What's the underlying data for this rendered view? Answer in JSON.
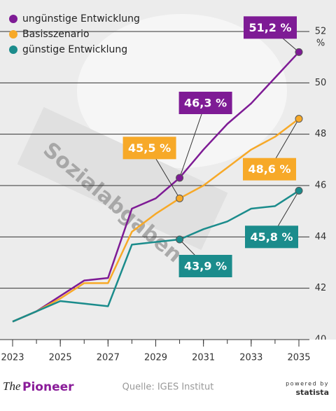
{
  "chart_data": {
    "type": "line",
    "x": [
      2023,
      2024,
      2025,
      2026,
      2027,
      2028,
      2029,
      2030,
      2031,
      2032,
      2033,
      2034,
      2035
    ],
    "xlim": [
      2023,
      2035
    ],
    "xticks": [
      2023,
      2025,
      2027,
      2029,
      2031,
      2033,
      2035
    ],
    "ylim": [
      40,
      52
    ],
    "yticks": [
      40,
      42,
      44,
      46,
      48,
      50,
      52
    ],
    "y_label": "%",
    "grid": true,
    "legend": "top-left",
    "series": [
      {
        "name": "ungünstige Entwicklung",
        "color": "#7e1b95",
        "values": [
          40.7,
          41.1,
          41.7,
          42.3,
          42.4,
          45.1,
          45.5,
          46.3,
          47.4,
          48.4,
          49.2,
          50.2,
          51.2
        ],
        "value_labels": [
          null,
          null,
          null,
          null,
          null,
          null,
          null,
          "46,3 %",
          null,
          null,
          null,
          null,
          "51,2 %"
        ]
      },
      {
        "name": "Basisszenario",
        "color": "#f7a928",
        "values": [
          40.7,
          41.1,
          41.6,
          42.2,
          42.2,
          44.2,
          44.9,
          45.5,
          46.0,
          46.7,
          47.4,
          47.9,
          48.6
        ],
        "value_labels": [
          null,
          null,
          null,
          null,
          null,
          null,
          null,
          "45,5 %",
          null,
          null,
          null,
          null,
          "48,6 %"
        ]
      },
      {
        "name": "günstige Entwicklung",
        "color": "#1b8c8c",
        "values": [
          40.7,
          41.1,
          41.5,
          41.4,
          41.3,
          43.7,
          43.8,
          43.9,
          44.3,
          44.6,
          45.1,
          45.2,
          45.8
        ],
        "value_labels": [
          null,
          null,
          null,
          null,
          null,
          null,
          null,
          "43,9 %",
          null,
          null,
          null,
          null,
          "45,8 %"
        ]
      }
    ]
  },
  "background_text": "Sozialabgaben",
  "footer": {
    "brand_prefix": "The",
    "brand_name": "Pioneer",
    "source": "Quelle: IGES Institut",
    "powered": "powered by",
    "statista": "statista"
  }
}
